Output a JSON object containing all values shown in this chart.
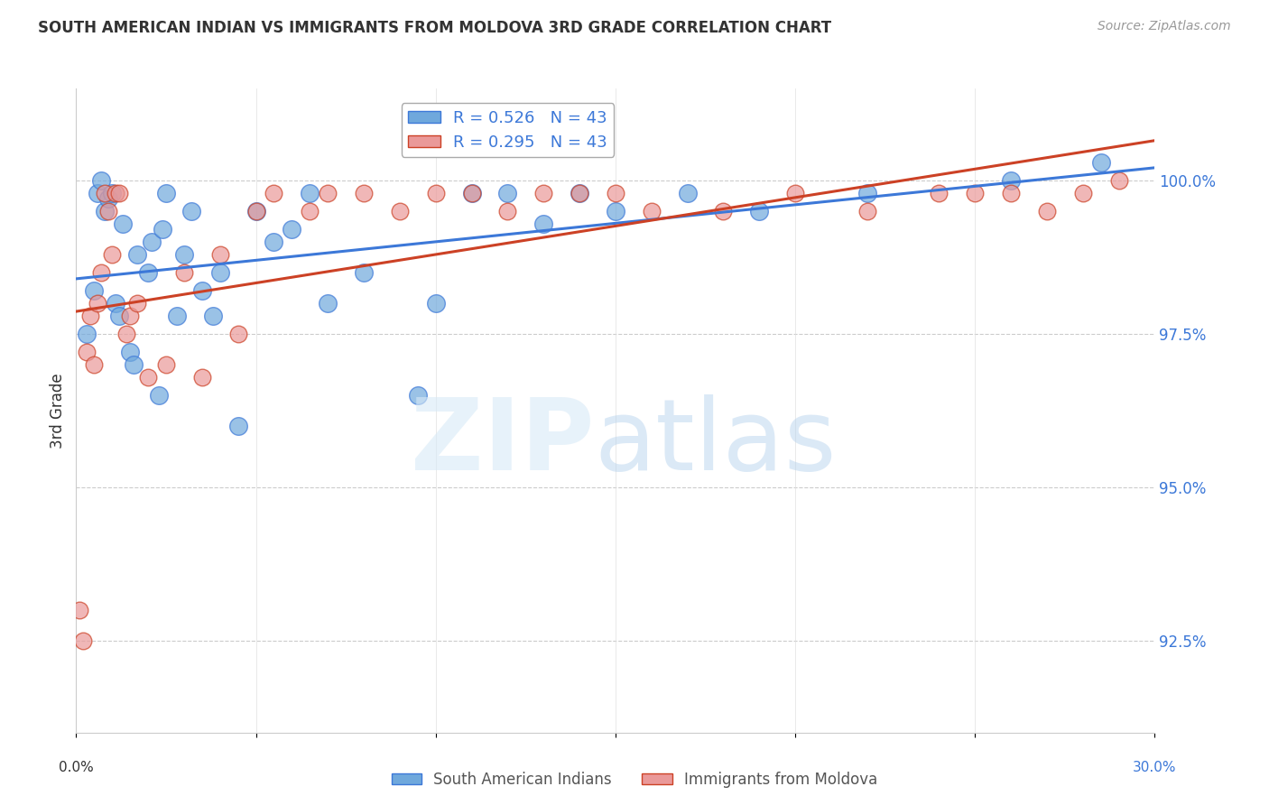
{
  "title": "SOUTH AMERICAN INDIAN VS IMMIGRANTS FROM MOLDOVA 3RD GRADE CORRELATION CHART",
  "source": "Source: ZipAtlas.com",
  "ylabel": "3rd Grade",
  "xlim": [
    0.0,
    30.0
  ],
  "ylim": [
    91.0,
    101.5
  ],
  "ytick_values": [
    92.5,
    95.0,
    97.5,
    100.0
  ],
  "xtick_values": [
    0.0,
    5.0,
    10.0,
    15.0,
    20.0,
    25.0,
    30.0
  ],
  "blue_R": 0.526,
  "pink_R": 0.295,
  "N": 43,
  "blue_color": "#6fa8dc",
  "pink_color": "#ea9999",
  "blue_line_color": "#3c78d8",
  "pink_line_color": "#cc4125",
  "legend_label_blue": "South American Indians",
  "legend_label_pink": "Immigrants from Moldova",
  "blue_x": [
    0.3,
    0.5,
    0.6,
    0.7,
    0.8,
    0.9,
    1.0,
    1.1,
    1.2,
    1.3,
    1.5,
    1.6,
    1.7,
    2.0,
    2.1,
    2.3,
    2.4,
    2.5,
    2.8,
    3.0,
    3.2,
    3.5,
    3.8,
    4.0,
    4.5,
    5.0,
    5.5,
    6.0,
    6.5,
    7.0,
    8.0,
    9.5,
    10.0,
    11.0,
    12.0,
    13.0,
    14.0,
    15.0,
    17.0,
    19.0,
    22.0,
    26.0,
    28.5
  ],
  "blue_y": [
    97.5,
    98.2,
    99.8,
    100.0,
    99.5,
    99.7,
    99.8,
    98.0,
    97.8,
    99.3,
    97.2,
    97.0,
    98.8,
    98.5,
    99.0,
    96.5,
    99.2,
    99.8,
    97.8,
    98.8,
    99.5,
    98.2,
    97.8,
    98.5,
    96.0,
    99.5,
    99.0,
    99.2,
    99.8,
    98.0,
    98.5,
    96.5,
    98.0,
    99.8,
    99.8,
    99.3,
    99.8,
    99.5,
    99.8,
    99.5,
    99.8,
    100.0,
    100.3
  ],
  "pink_x": [
    0.1,
    0.2,
    0.3,
    0.4,
    0.5,
    0.6,
    0.7,
    0.8,
    0.9,
    1.0,
    1.1,
    1.2,
    1.4,
    1.5,
    1.7,
    2.0,
    2.5,
    3.0,
    3.5,
    4.0,
    4.5,
    5.0,
    5.5,
    6.5,
    7.0,
    8.0,
    9.0,
    10.0,
    11.0,
    12.0,
    13.0,
    14.0,
    15.0,
    16.0,
    18.0,
    20.0,
    22.0,
    24.0,
    25.0,
    26.0,
    27.0,
    28.0,
    29.0
  ],
  "pink_y": [
    93.0,
    92.5,
    97.2,
    97.8,
    97.0,
    98.0,
    98.5,
    99.8,
    99.5,
    98.8,
    99.8,
    99.8,
    97.5,
    97.8,
    98.0,
    96.8,
    97.0,
    98.5,
    96.8,
    98.8,
    97.5,
    99.5,
    99.8,
    99.5,
    99.8,
    99.8,
    99.5,
    99.8,
    99.8,
    99.5,
    99.8,
    99.8,
    99.8,
    99.5,
    99.5,
    99.8,
    99.5,
    99.8,
    99.8,
    99.8,
    99.5,
    99.8,
    100.0
  ]
}
